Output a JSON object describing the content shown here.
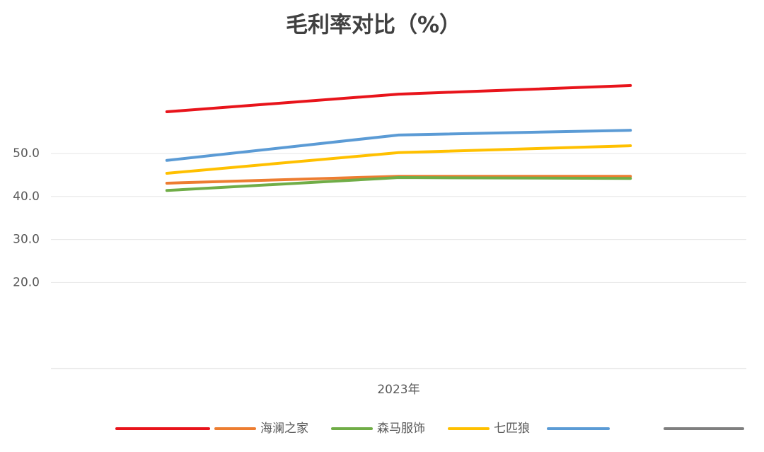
{
  "chart_data": {
    "type": "line",
    "title": "毛利率对比（%）",
    "categories": [
      null,
      "2023年",
      null
    ],
    "series": [
      {
        "name": null,
        "color": "#e8141b",
        "values": [
          59.7,
          63.8,
          65.8
        ]
      },
      {
        "name": "海澜之家",
        "color": "#ed7d31",
        "values": [
          43.1,
          44.7,
          44.7
        ]
      },
      {
        "name": "森马服饰",
        "color": "#70ad47",
        "values": [
          41.4,
          44.4,
          44.2
        ]
      },
      {
        "name": "七匹狼",
        "color": "#ffc000",
        "values": [
          45.4,
          50.2,
          51.8
        ]
      },
      {
        "name": null,
        "color": "#5b9bd5",
        "values": [
          48.4,
          54.3,
          55.4
        ]
      },
      {
        "name": null,
        "color": "#7f7f7f",
        "values": [
          null,
          null,
          null
        ]
      }
    ],
    "ylim": [
      0,
      70
    ],
    "yticks": [
      {
        "value": 20,
        "label": "20.0"
      },
      {
        "value": 30,
        "label": "30.0"
      },
      {
        "value": 40,
        "label": "40.0"
      },
      {
        "value": 50,
        "label": "50.0"
      }
    ],
    "grid": true
  }
}
